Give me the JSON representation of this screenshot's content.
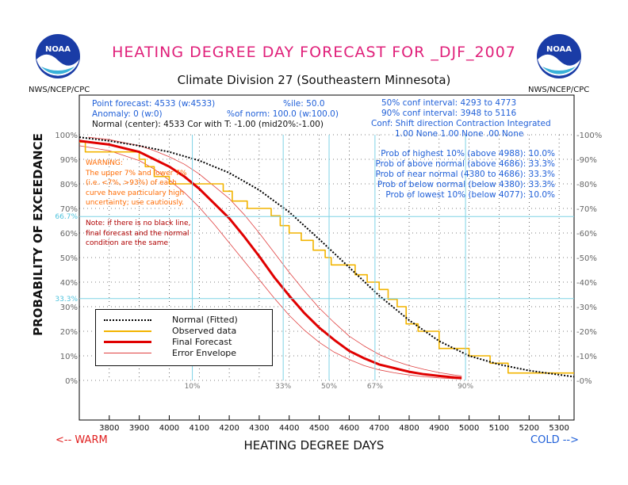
{
  "header": {
    "title": "HEATING DEGREE DAY FORECAST FOR _DJF_2007",
    "subtitle": "Climate Division 27 (Southeastern Minnesota)",
    "agency_left": "NWS/NCEP/CPC",
    "agency_right": "NWS/NCEP/CPC",
    "logo_text": "NOAA"
  },
  "info": {
    "line1a": "Point forecast: 4533 (w:4533)",
    "line1b": "%ile: 50.0",
    "line2a": "Anomaly: 0 (w:0)",
    "line2b": "%of norm: 100.0 (w:100.0)",
    "line3": "Normal (center): 4533 Cor with T: -1.00 (mid20%:-1.00)",
    "conf1": "50% conf interval: 4293 to 4773",
    "conf2": "90% conf interval: 3948 to 5116",
    "conf3": "Conf: Shift direction   Contraction   Integrated",
    "conf4": "1.00 None          1.00 None    .00 None"
  },
  "probs": [
    "Prob of highest 10% (above 4988): 10.0%",
    "Prob of above normal (above 4686): 33.3%",
    "Prob of near normal (4380 to 4686): 33.3%",
    "Prob of below normal (below 4380): 33.3%",
    "Prob of lowest 10% (below 4077): 10.0%"
  ],
  "warning": {
    "lines": [
      "WARNING:",
      "The upper 7% and lower 7%",
      "(i.e. <7%, >93%) of each",
      "curve have particulary high",
      "uncertainty; use cautiously."
    ]
  },
  "note": {
    "lines": [
      "Note: if there is no black line,",
      "final forecast and  the normal",
      "condition are the same"
    ]
  },
  "axes": {
    "ylabel": "PROBABILITY OF EXCEEDANCE",
    "xlabel": "HEATING DEGREE DAYS",
    "warm": "<-- WARM",
    "cold": "COLD -->"
  },
  "legend": {
    "items": [
      {
        "label": "Normal (Fitted)",
        "color": "#000000",
        "style": "dotted"
      },
      {
        "label": "Observed data",
        "color": "#f2b400",
        "style": "solid"
      },
      {
        "label": "Final Forecast",
        "color": "#e00000",
        "style": "thick"
      },
      {
        "label": "Error Envelope",
        "color": "#e04040",
        "style": "thin"
      }
    ]
  },
  "chart_data": {
    "type": "line",
    "title": "HEATING DEGREE DAY FORECAST FOR _DJF_2007",
    "xlabel": "HEATING DEGREE DAYS",
    "ylabel": "PROBABILITY OF EXCEEDANCE",
    "xlim": [
      3700,
      5350
    ],
    "ylim": [
      0,
      100
    ],
    "x_ticks": [
      3800,
      3900,
      4000,
      4100,
      4200,
      4300,
      4400,
      4500,
      4600,
      4700,
      4800,
      4900,
      5000,
      5100,
      5200,
      5300
    ],
    "y_ticks": [
      "0%",
      "10%",
      "20%",
      "30%",
      "40%",
      "50%",
      "60%",
      "70%",
      "80%",
      "90%",
      "100%"
    ],
    "grid": "dotted",
    "percentile_markers": [
      {
        "label": "10%",
        "x": 4077
      },
      {
        "label": "33%",
        "x": 4380
      },
      {
        "label": "50%",
        "x": 4533
      },
      {
        "label": "67%",
        "x": 4686
      },
      {
        "label": "90%",
        "x": 4988
      }
    ],
    "h_reference": [
      {
        "label": "66.7%",
        "y": 66.7
      },
      {
        "label": "33.3%",
        "y": 33.3
      }
    ],
    "series": [
      {
        "name": "Normal (Fitted)",
        "color": "#000000",
        "x": [
          3700,
          3800,
          3900,
          4000,
          4100,
          4200,
          4300,
          4400,
          4500,
          4600,
          4700,
          4800,
          4900,
          5000,
          5100,
          5200,
          5300,
          5350
        ],
        "y": [
          99,
          97.5,
          95.5,
          93,
          89.5,
          84.5,
          77.5,
          68.5,
          57.5,
          46,
          34.5,
          24.5,
          16,
          10,
          6.5,
          4,
          2.3,
          1.5
        ]
      },
      {
        "name": "Observed data",
        "color": "#f2b400",
        "x": [
          3700,
          3720,
          3720,
          3820,
          3820,
          3900,
          3900,
          3920,
          3920,
          3950,
          3950,
          4000,
          4000,
          4010,
          4010,
          4030,
          4030,
          4180,
          4180,
          4210,
          4210,
          4260,
          4260,
          4340,
          4340,
          4370,
          4370,
          4400,
          4400,
          4440,
          4440,
          4480,
          4480,
          4520,
          4520,
          4540,
          4540,
          4620,
          4620,
          4660,
          4660,
          4700,
          4700,
          4730,
          4730,
          4760,
          4760,
          4790,
          4790,
          4830,
          4830,
          4880,
          4880,
          4900,
          4900,
          5000,
          5000,
          5070,
          5070,
          5100,
          5100,
          5130,
          5130,
          5280,
          5280,
          5350
        ],
        "y": [
          97,
          97,
          93,
          93,
          93,
          93,
          90,
          90,
          87,
          87,
          83,
          83,
          80,
          80,
          80,
          80,
          80,
          80,
          77,
          77,
          73,
          73,
          70,
          70,
          67,
          67,
          63,
          63,
          60,
          60,
          57,
          57,
          53,
          53,
          50,
          50,
          47,
          47,
          43,
          43,
          40,
          40,
          37,
          37,
          33,
          33,
          30,
          30,
          23,
          23,
          20,
          20,
          20,
          20,
          13,
          13,
          10,
          10,
          7,
          7,
          7,
          7,
          3,
          3,
          3,
          3
        ]
      },
      {
        "name": "Final Forecast",
        "color": "#e00000",
        "x": [
          3700,
          3800,
          3900,
          3950,
          4000,
          4050,
          4100,
          4150,
          4200,
          4250,
          4300,
          4350,
          4400,
          4450,
          4500,
          4550,
          4600,
          4650,
          4700,
          4750,
          4800,
          4850,
          4900,
          4950,
          4975
        ],
        "y": [
          97.5,
          96,
          93,
          90,
          87,
          83,
          78,
          72,
          66,
          58.5,
          50.5,
          42,
          34.5,
          27.5,
          21.5,
          16.5,
          12,
          9,
          6.5,
          5,
          3.5,
          2.5,
          1.8,
          1.2,
          1
        ]
      },
      {
        "name": "Error Envelope",
        "color": "#e04040",
        "x": [
          3730,
          3800,
          3900,
          3950,
          4000,
          4050,
          4100,
          4150,
          4200,
          4250,
          4300,
          4350,
          4400,
          4450,
          4500,
          4550,
          4600,
          4650,
          4700,
          4750,
          4800,
          4850,
          4900,
          4950,
          4975
        ],
        "y": [
          99,
          98,
          95.5,
          93.5,
          91,
          88,
          84,
          79,
          74,
          67.5,
          60,
          52,
          44,
          36.5,
          29.5,
          23.5,
          18,
          14,
          10.5,
          8,
          6,
          4.5,
          3.2,
          2.2,
          1.8
        ]
      },
      {
        "name": "Error Envelope",
        "color": "#e04040",
        "x": [
          3700,
          3800,
          3900,
          3950,
          4000,
          4050,
          4100,
          4150,
          4200,
          4250,
          4300,
          4350,
          4400,
          4450,
          4500,
          4550,
          4600,
          4650,
          4700,
          4750,
          4800,
          4850,
          4900,
          4950,
          4975
        ],
        "y": [
          95.5,
          93.5,
          89.5,
          86,
          81.5,
          76.5,
          70.5,
          63.5,
          56,
          48.5,
          41,
          33.5,
          26.5,
          20.5,
          15.5,
          11.5,
          8.5,
          6,
          4.3,
          3.1,
          2.2,
          1.5,
          1,
          0.7,
          0.5
        ]
      }
    ]
  }
}
